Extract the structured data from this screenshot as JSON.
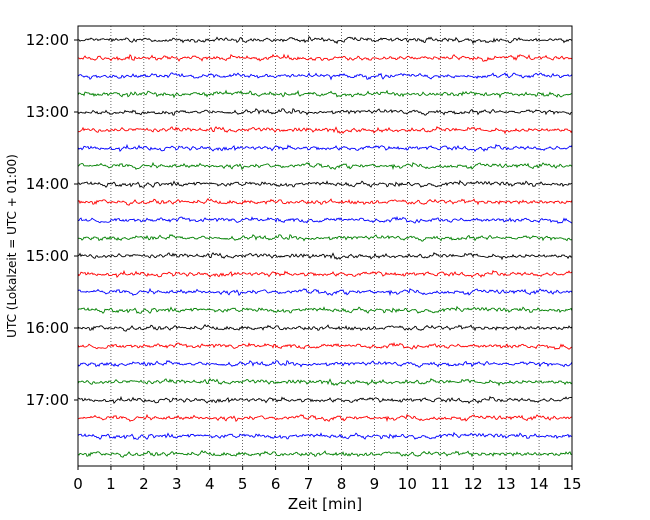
{
  "chart_data": {
    "type": "line",
    "title": "",
    "xlabel": "Zeit  [min]",
    "ylabel": "UTC (Lokalzeit = UTC + 01:00)",
    "xlim": [
      0,
      15
    ],
    "x_ticks": [
      "0",
      "1",
      "2",
      "3",
      "4",
      "5",
      "6",
      "7",
      "8",
      "9",
      "10",
      "11",
      "12",
      "13",
      "14",
      "15"
    ],
    "y_tick_labels": [
      {
        "label": "12:00",
        "row": 0
      },
      {
        "label": "13:00",
        "row": 4
      },
      {
        "label": "14:00",
        "row": 8
      },
      {
        "label": "15:00",
        "row": 12
      },
      {
        "label": "16:00",
        "row": 16
      },
      {
        "label": "17:00",
        "row": 20
      }
    ],
    "rows_per_hour": 4,
    "row_duration_min": 15,
    "row_count": 24,
    "row_colors": [
      "#000000",
      "#ff0000",
      "#0000ff",
      "#008000"
    ],
    "vertical_grid": "dotted, every 1 min",
    "series_description_rows": [
      "12:00",
      "12:15",
      "12:30",
      "12:45",
      "13:00",
      "13:15",
      "13:30",
      "13:45",
      "14:00",
      "14:15",
      "14:30",
      "14:45",
      "15:00",
      "15:15",
      "15:30",
      "15:45",
      "16:00",
      "16:15",
      "16:30",
      "16:45",
      "17:00",
      "17:15",
      "17:30",
      "17:45"
    ]
  }
}
